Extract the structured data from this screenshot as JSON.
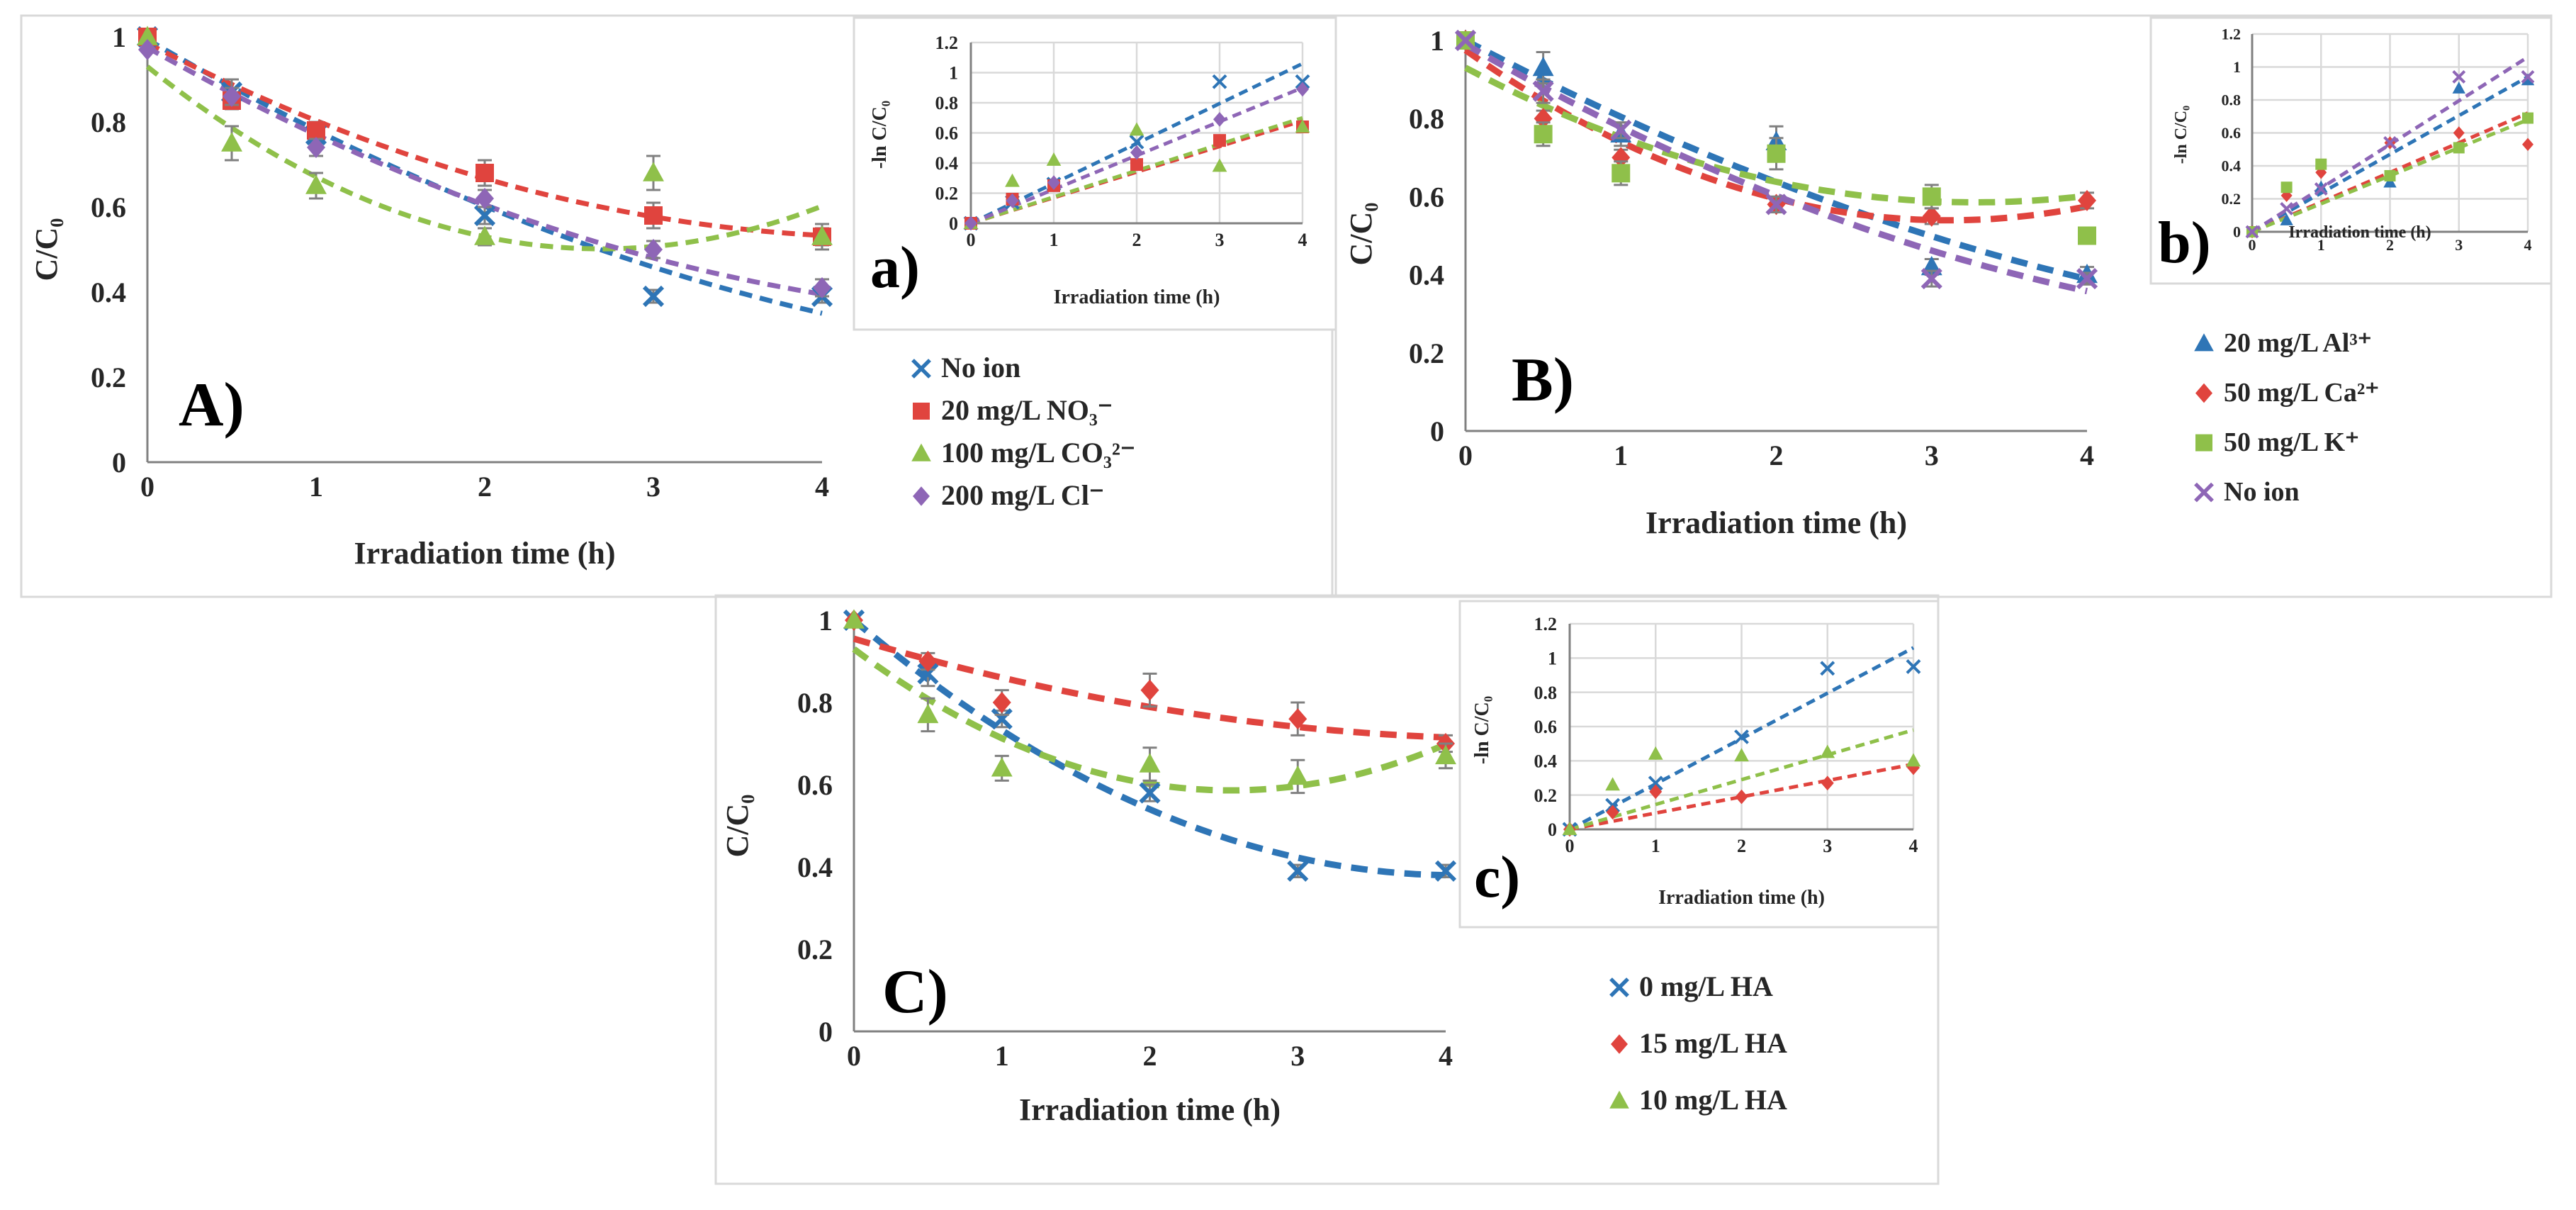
{
  "chart_data": [
    {
      "id": "A",
      "type": "scatter",
      "panel_label": "A)",
      "xlabel": "Irradiation time (h)",
      "ylabel": "C/C₀",
      "xlim": [
        0,
        4
      ],
      "ylim": [
        0,
        1
      ],
      "xticks": [
        0,
        1,
        2,
        3,
        4
      ],
      "yticks": [
        0,
        0.2,
        0.4,
        0.6,
        0.8,
        1
      ],
      "tick_labels_x": [
        "0",
        "1",
        "2",
        "3",
        "4"
      ],
      "tick_labels_y": [
        "0",
        "0.2",
        "0.4",
        "0.6",
        "0.8",
        "1"
      ],
      "grid": false,
      "series": [
        {
          "name": "No ion",
          "color": "#2e75b6",
          "marker": "x",
          "x": [
            0,
            0.5,
            1,
            2,
            3,
            4
          ],
          "y": [
            1.0,
            0.87,
            0.77,
            0.58,
            0.39,
            0.39
          ],
          "err": [
            0,
            0.03,
            0.02,
            0.02,
            0.015,
            0.015
          ],
          "trend": [
            0.994,
            -0.231,
            0.0175
          ]
        },
        {
          "name": "20 mg/L NO₃⁻",
          "color": "#e0443e",
          "marker": "square",
          "x": [
            0,
            0.5,
            1,
            2,
            3,
            4
          ],
          "y": [
            1.0,
            0.85,
            0.78,
            0.68,
            0.58,
            0.53
          ],
          "err": [
            0,
            0.02,
            0.02,
            0.03,
            0.03,
            0.02
          ],
          "trend": [
            0.985,
            -0.205,
            0.023
          ]
        },
        {
          "name": "100 mg/L CO₃²⁻",
          "color": "#8fc04a",
          "marker": "triangle",
          "x": [
            0,
            0.5,
            1,
            2,
            3,
            4
          ],
          "y": [
            1.0,
            0.75,
            0.65,
            0.53,
            0.68,
            0.53
          ],
          "err": [
            0,
            0.04,
            0.03,
            0.02,
            0.04,
            0.03
          ],
          "trend": [
            0.93,
            -0.318,
            0.059
          ]
        },
        {
          "name": "200 mg/L Cl⁻",
          "color": "#8e66b6",
          "marker": "diamond",
          "x": [
            0,
            0.5,
            1,
            2,
            3,
            4
          ],
          "y": [
            0.97,
            0.86,
            0.74,
            0.62,
            0.5,
            0.41
          ],
          "err": [
            0,
            0.02,
            0.02,
            0.02,
            0.02,
            0.02
          ],
          "trend": [
            0.975,
            -0.225,
            0.02
          ]
        }
      ]
    },
    {
      "id": "a",
      "type": "scatter",
      "panel_label": "a)",
      "xlabel": "Irradiation time (h)",
      "ylabel": "-ln C/C₀",
      "xlim": [
        0,
        4
      ],
      "ylim": [
        0,
        1.2
      ],
      "xticks": [
        0,
        1,
        2,
        3,
        4
      ],
      "yticks": [
        0,
        0.2,
        0.4,
        0.6,
        0.8,
        1,
        1.2
      ],
      "tick_labels_x": [
        "0",
        "1",
        "2",
        "3",
        "4"
      ],
      "tick_labels_y": [
        "0",
        "0.2",
        "0.4",
        "0.6",
        "0.8",
        "1",
        "1.2"
      ],
      "grid": true,
      "series": [
        {
          "name": "No ion",
          "color": "#2e75b6",
          "marker": "x",
          "x": [
            0,
            0.5,
            1,
            2,
            3,
            4
          ],
          "y": [
            0,
            0.14,
            0.26,
            0.54,
            0.94,
            0.94
          ],
          "fit": [
            0.0,
            0.265
          ]
        },
        {
          "name": "20 mg/L NO₃⁻",
          "color": "#e0443e",
          "marker": "square",
          "x": [
            0,
            0.5,
            1,
            2,
            3,
            4
          ],
          "y": [
            0,
            0.16,
            0.25,
            0.39,
            0.55,
            0.64
          ],
          "fit": [
            0.0,
            0.17
          ]
        },
        {
          "name": "100 mg/L CO₃²⁻",
          "color": "#8fc04a",
          "marker": "triangle",
          "x": [
            0,
            0.5,
            1,
            2,
            3,
            4
          ],
          "y": [
            0,
            0.28,
            0.42,
            0.62,
            0.38,
            0.64
          ],
          "fit": [
            0.0,
            0.175
          ]
        },
        {
          "name": "200 mg/L Cl⁻",
          "color": "#8e66b6",
          "marker": "diamond",
          "x": [
            0,
            0.5,
            1,
            2,
            3,
            4
          ],
          "y": [
            0,
            0.15,
            0.27,
            0.47,
            0.69,
            0.89
          ],
          "fit": [
            0.0,
            0.225
          ]
        }
      ]
    },
    {
      "id": "B",
      "type": "scatter",
      "panel_label": "B)",
      "xlabel": "Irradiation time (h)",
      "ylabel": "C/C₀",
      "xlim": [
        0,
        4
      ],
      "ylim": [
        0,
        1
      ],
      "xticks": [
        0,
        1,
        2,
        3,
        4
      ],
      "yticks": [
        0,
        0.2,
        0.4,
        0.6,
        0.8,
        1
      ],
      "tick_labels_x": [
        "0",
        "1",
        "2",
        "3",
        "4"
      ],
      "tick_labels_y": [
        "0",
        "0.2",
        "0.4",
        "0.6",
        "0.8",
        "1"
      ],
      "grid": false,
      "series": [
        {
          "name": "20 mg/L Al³⁺",
          "color": "#2e75b6",
          "marker": "triangle",
          "x": [
            0,
            0.5,
            1,
            2,
            3,
            4
          ],
          "y": [
            1.0,
            0.93,
            0.76,
            0.74,
            0.42,
            0.4
          ],
          "err": [
            0,
            0.04,
            0.03,
            0.04,
            0.02,
            0.02
          ],
          "trend": [
            1.0,
            -0.21,
            0.0143
          ]
        },
        {
          "name": "50 mg/L Ca²⁺",
          "color": "#e0443e",
          "marker": "diamond",
          "x": [
            0,
            0.5,
            1,
            2,
            3,
            4
          ],
          "y": [
            1.0,
            0.8,
            0.7,
            0.58,
            0.55,
            0.59
          ],
          "err": [
            0,
            0.02,
            0.02,
            0.02,
            0.02,
            0.02
          ],
          "trend": [
            0.975,
            -0.28,
            0.045
          ]
        },
        {
          "name": "50 mg/L K⁺",
          "color": "#8fc04a",
          "marker": "square",
          "x": [
            0,
            0.5,
            1,
            2,
            3,
            4
          ],
          "y": [
            1.0,
            0.76,
            0.66,
            0.71,
            0.6,
            0.5
          ],
          "err": [
            0,
            0.03,
            0.03,
            0.04,
            0.03,
            0.02
          ],
          "trend": [
            0.93,
            -0.21,
            0.032
          ]
        },
        {
          "name": "No ion",
          "color": "#8e66b6",
          "marker": "x",
          "x": [
            0,
            0.5,
            1,
            2,
            3,
            4
          ],
          "y": [
            1.0,
            0.87,
            0.77,
            0.58,
            0.39,
            0.39
          ],
          "err": [
            0,
            0.03,
            0.02,
            0.02,
            0.02,
            0.015
          ],
          "trend": [
            0.99,
            -0.23,
            0.018
          ]
        }
      ]
    },
    {
      "id": "b",
      "type": "scatter",
      "panel_label": "b)",
      "xlabel": "Irradiation time (h)",
      "ylabel": "-ln C/C₀",
      "xlim": [
        0,
        4
      ],
      "ylim": [
        0,
        1.2
      ],
      "xticks": [
        0,
        1,
        2,
        3,
        4
      ],
      "yticks": [
        0,
        0.2,
        0.4,
        0.6,
        0.8,
        1,
        1.2
      ],
      "tick_labels_x": [
        "0",
        "1",
        "2",
        "3",
        "4"
      ],
      "tick_labels_y": [
        "0",
        "0.2",
        "0.4",
        "0.6",
        "0.8",
        "1",
        "1.2"
      ],
      "grid": true,
      "series": [
        {
          "name": "20 mg/L Al³⁺",
          "color": "#2e75b6",
          "marker": "triangle",
          "x": [
            0,
            0.5,
            1,
            2,
            3,
            4
          ],
          "y": [
            0,
            0.07,
            0.27,
            0.3,
            0.87,
            0.92
          ],
          "fit": [
            0.0,
            0.235
          ]
        },
        {
          "name": "50 mg/L Ca²⁺",
          "color": "#e0443e",
          "marker": "diamond",
          "x": [
            0,
            0.5,
            1,
            2,
            3,
            4
          ],
          "y": [
            0,
            0.22,
            0.36,
            0.54,
            0.6,
            0.53
          ],
          "fit": [
            0.0,
            0.18
          ]
        },
        {
          "name": "50 mg/L K⁺",
          "color": "#8fc04a",
          "marker": "square",
          "x": [
            0,
            0.5,
            1,
            2,
            3,
            4
          ],
          "y": [
            0,
            0.27,
            0.41,
            0.34,
            0.51,
            0.69
          ],
          "fit": [
            0.0,
            0.17
          ]
        },
        {
          "name": "No ion",
          "color": "#8e66b6",
          "marker": "x",
          "x": [
            0,
            0.5,
            1,
            2,
            3,
            4
          ],
          "y": [
            0,
            0.14,
            0.26,
            0.54,
            0.94,
            0.94
          ],
          "fit": [
            0.0,
            0.265
          ]
        }
      ]
    },
    {
      "id": "C",
      "type": "scatter",
      "panel_label": "C)",
      "xlabel": "Irradiation time (h)",
      "ylabel": "C/C₀",
      "xlim": [
        0,
        4
      ],
      "ylim": [
        0,
        1
      ],
      "xticks": [
        0,
        1,
        2,
        3,
        4
      ],
      "yticks": [
        0,
        0.2,
        0.4,
        0.6,
        0.8,
        1
      ],
      "tick_labels_x": [
        "0",
        "1",
        "2",
        "3",
        "4"
      ],
      "tick_labels_y": [
        "0",
        "0.2",
        "0.4",
        "0.6",
        "0.8",
        "1"
      ],
      "grid": false,
      "series": [
        {
          "name": "0 mg/L HA",
          "color": "#2e75b6",
          "marker": "x",
          "x": [
            0,
            0.5,
            1,
            2,
            3,
            4
          ],
          "y": [
            1.0,
            0.87,
            0.76,
            0.58,
            0.39,
            0.39
          ],
          "err": [
            0,
            0.03,
            0.02,
            0.02,
            0.015,
            0.015
          ],
          "trend": [
            1.0,
            -0.305,
            0.0375
          ]
        },
        {
          "name": "15 mg/L HA",
          "color": "#e0443e",
          "marker": "diamond",
          "x": [
            0,
            0.5,
            1,
            2,
            3,
            4
          ],
          "y": [
            1.0,
            0.9,
            0.8,
            0.83,
            0.76,
            0.7
          ],
          "err": [
            0,
            0.02,
            0.03,
            0.04,
            0.04,
            0.02
          ],
          "trend": [
            0.955,
            -0.106,
            0.0115
          ]
        },
        {
          "name": "10 mg/L HA",
          "color": "#8fc04a",
          "marker": "triangle",
          "x": [
            0,
            0.5,
            1,
            2,
            3,
            4
          ],
          "y": [
            1.0,
            0.77,
            0.64,
            0.65,
            0.62,
            0.67
          ],
          "err": [
            0,
            0.04,
            0.03,
            0.04,
            0.04,
            0.03
          ],
          "trend": [
            0.93,
            -0.27,
            0.053
          ]
        }
      ]
    },
    {
      "id": "c",
      "type": "scatter",
      "panel_label": "c)",
      "xlabel": "Irradiation time (h)",
      "ylabel": "-ln C/C₀",
      "xlim": [
        0,
        4
      ],
      "ylim": [
        0,
        1.2
      ],
      "xticks": [
        0,
        1,
        2,
        3,
        4
      ],
      "yticks": [
        0,
        0.2,
        0.4,
        0.6,
        0.8,
        1,
        1.2
      ],
      "tick_labels_x": [
        "0",
        "1",
        "2",
        "3",
        "4"
      ],
      "tick_labels_y": [
        "0",
        "0.2",
        "0.4",
        "0.6",
        "0.8",
        "1",
        "1.2"
      ],
      "grid": true,
      "series": [
        {
          "name": "0 mg/L HA",
          "color": "#2e75b6",
          "marker": "x",
          "x": [
            0,
            0.5,
            1,
            2,
            3,
            4
          ],
          "y": [
            0,
            0.14,
            0.27,
            0.54,
            0.94,
            0.95
          ],
          "fit": [
            0.0,
            0.265
          ]
        },
        {
          "name": "15 mg/L HA",
          "color": "#e0443e",
          "marker": "diamond",
          "x": [
            0,
            0.5,
            1,
            2,
            3,
            4
          ],
          "y": [
            0,
            0.1,
            0.22,
            0.19,
            0.27,
            0.36
          ],
          "fit": [
            0.0,
            0.095
          ]
        },
        {
          "name": "10 mg/L HA",
          "color": "#8fc04a",
          "marker": "triangle",
          "x": [
            0,
            0.5,
            1,
            2,
            3,
            4
          ],
          "y": [
            0,
            0.26,
            0.44,
            0.43,
            0.45,
            0.4
          ],
          "fit": [
            0.0,
            0.145
          ]
        }
      ]
    }
  ]
}
